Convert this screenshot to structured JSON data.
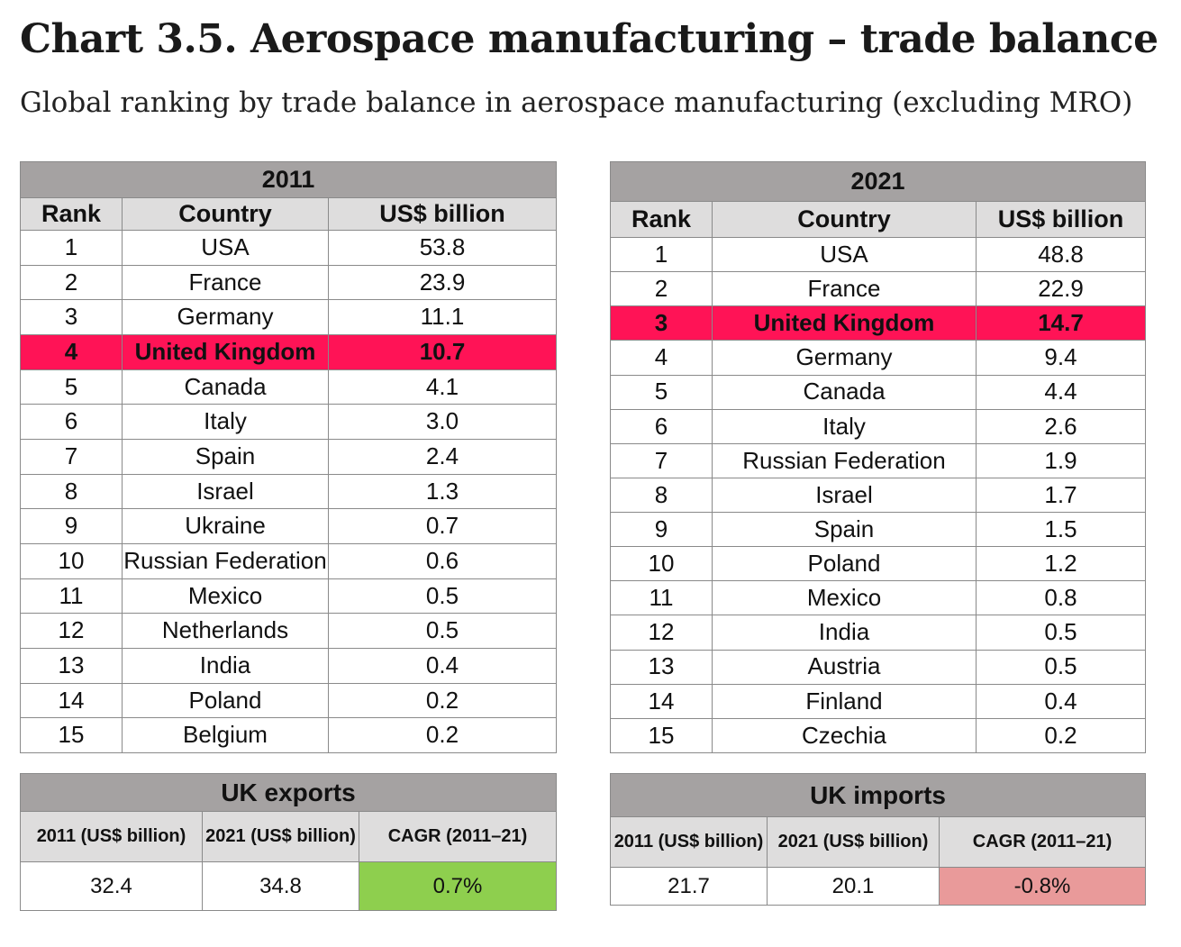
{
  "title": "Chart 3.5. Aerospace manufacturing – trade balance",
  "subtitle": "Global ranking by trade balance in aerospace manufacturing (excluding MRO)",
  "chart_data": {
    "type": "table",
    "tables": [
      {
        "year": "2011",
        "headers": [
          "Rank",
          "Country",
          "US$ billion"
        ],
        "highlight": "United Kingdom",
        "rows": [
          {
            "rank": "1",
            "country": "USA",
            "value": "53.8"
          },
          {
            "rank": "2",
            "country": "France",
            "value": "23.9"
          },
          {
            "rank": "3",
            "country": "Germany",
            "value": "11.1"
          },
          {
            "rank": "4",
            "country": "United Kingdom",
            "value": "10.7"
          },
          {
            "rank": "5",
            "country": "Canada",
            "value": "4.1"
          },
          {
            "rank": "6",
            "country": "Italy",
            "value": "3.0"
          },
          {
            "rank": "7",
            "country": "Spain",
            "value": "2.4"
          },
          {
            "rank": "8",
            "country": "Israel",
            "value": "1.3"
          },
          {
            "rank": "9",
            "country": "Ukraine",
            "value": "0.7"
          },
          {
            "rank": "10",
            "country": "Russian Federation",
            "value": "0.6"
          },
          {
            "rank": "11",
            "country": "Mexico",
            "value": "0.5"
          },
          {
            "rank": "12",
            "country": "Netherlands",
            "value": "0.5"
          },
          {
            "rank": "13",
            "country": "India",
            "value": "0.4"
          },
          {
            "rank": "14",
            "country": "Poland",
            "value": "0.2"
          },
          {
            "rank": "15",
            "country": "Belgium",
            "value": "0.2"
          }
        ]
      },
      {
        "year": "2021",
        "headers": [
          "Rank",
          "Country",
          "US$ billion"
        ],
        "highlight": "United Kingdom",
        "rows": [
          {
            "rank": "1",
            "country": "USA",
            "value": "48.8"
          },
          {
            "rank": "2",
            "country": "France",
            "value": "22.9"
          },
          {
            "rank": "3",
            "country": "United Kingdom",
            "value": "14.7"
          },
          {
            "rank": "4",
            "country": "Germany",
            "value": "9.4"
          },
          {
            "rank": "5",
            "country": "Canada",
            "value": "4.4"
          },
          {
            "rank": "6",
            "country": "Italy",
            "value": "2.6"
          },
          {
            "rank": "7",
            "country": "Russian Federation",
            "value": "1.9"
          },
          {
            "rank": "8",
            "country": "Israel",
            "value": "1.7"
          },
          {
            "rank": "9",
            "country": "Spain",
            "value": "1.5"
          },
          {
            "rank": "10",
            "country": "Poland",
            "value": "1.2"
          },
          {
            "rank": "11",
            "country": "Mexico",
            "value": "0.8"
          },
          {
            "rank": "12",
            "country": "India",
            "value": "0.5"
          },
          {
            "rank": "13",
            "country": "Austria",
            "value": "0.5"
          },
          {
            "rank": "14",
            "country": "Finland",
            "value": "0.4"
          },
          {
            "rank": "15",
            "country": "Czechia",
            "value": "0.2"
          }
        ]
      }
    ],
    "summaries": [
      {
        "title": "UK exports",
        "headers": [
          "2011 (US$ billion)",
          "2021 (US$ billion)",
          "CAGR (2011–21)"
        ],
        "values": [
          "32.4",
          "34.8",
          "0.7%"
        ],
        "cagr_color": "#8ecf4e"
      },
      {
        "title": "UK imports",
        "headers": [
          "2011 (US$ billion)",
          "2021 (US$ billion)",
          "CAGR (2011–21)"
        ],
        "values": [
          "21.7",
          "20.1",
          "-0.8%"
        ],
        "cagr_color": "#e99a9a"
      }
    ]
  }
}
